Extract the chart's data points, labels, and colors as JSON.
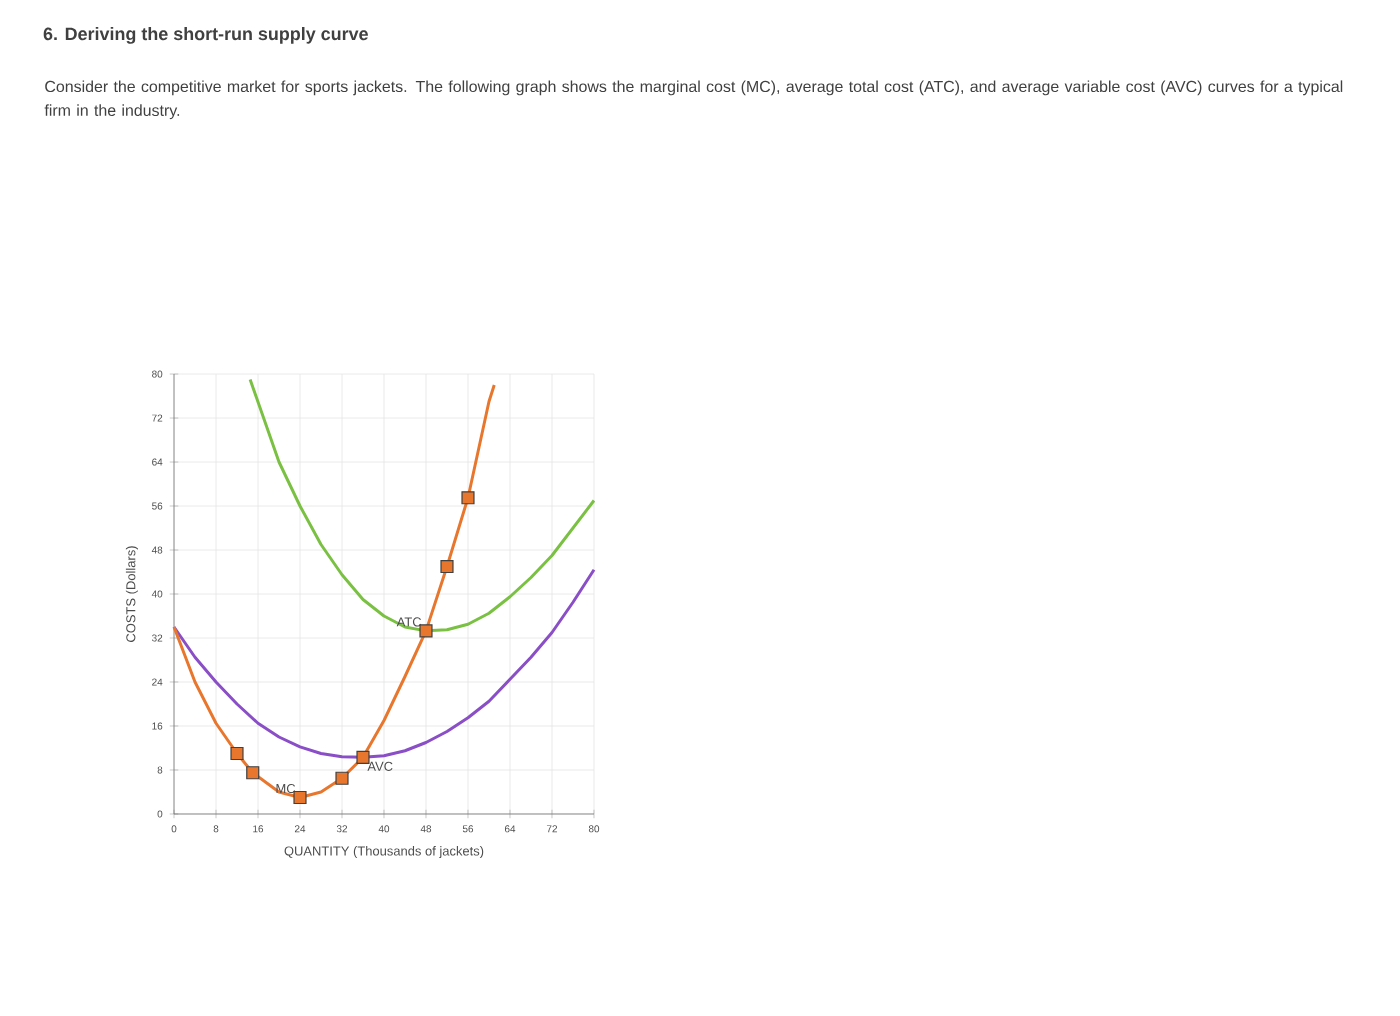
{
  "chart_data": {
    "type": "line",
    "title": "6. Deriving the short-run supply curve",
    "subtitle": "Consider the competitive market for sports jackets. The following graph shows the marginal cost (MC), average total cost (ATC), and average variable cost (AVC) curves for a typical firm in the industry.",
    "xlabel": "QUANTITY (Thousands of jackets)",
    "ylabel": "COSTS (Dollars)",
    "xlim": [
      0,
      80
    ],
    "ylim": [
      0,
      80
    ],
    "xticks": [
      0,
      8,
      16,
      24,
      32,
      40,
      48,
      56,
      64,
      72,
      80
    ],
    "yticks": [
      0,
      8,
      16,
      24,
      32,
      40,
      48,
      56,
      64,
      72,
      80
    ],
    "grid": true,
    "series": [
      {
        "name": "ATC",
        "marker": "none",
        "color": "#7ac143",
        "x": [
          14.5,
          20,
          24,
          28,
          32,
          36,
          40,
          44,
          48,
          52,
          56,
          60,
          64,
          68,
          72,
          76,
          80
        ],
        "values": [
          79,
          64,
          56,
          49,
          43.5,
          39,
          36,
          34,
          33.3,
          33.5,
          34.5,
          36.5,
          39.5,
          43,
          47,
          52,
          57
        ]
      },
      {
        "name": "AVC",
        "marker": "none",
        "color": "#8a4fc6",
        "x": [
          0,
          4,
          8,
          12,
          16,
          20,
          24,
          28,
          32,
          36,
          40,
          44,
          48,
          52,
          56,
          60,
          64,
          68,
          72,
          76,
          80
        ],
        "values": [
          34,
          28.5,
          24,
          20,
          16.5,
          14,
          12.2,
          11,
          10.4,
          10.3,
          10.6,
          11.5,
          13,
          15,
          17.5,
          20.5,
          24.5,
          28.5,
          33,
          38.5,
          44.4
        ]
      },
      {
        "name": "MC",
        "marker": "none",
        "color": "#e8762d",
        "x": [
          0,
          4,
          8,
          12,
          15,
          20,
          24,
          28,
          32,
          36,
          40,
          44,
          48,
          52,
          56,
          60,
          61
        ],
        "values": [
          34,
          24,
          16.5,
          11,
          7.5,
          4,
          3,
          4,
          6.5,
          10.3,
          17,
          25,
          33.3,
          45,
          57.5,
          75,
          78
        ]
      },
      {
        "type": "scatter",
        "marker": "square",
        "color": "#e8762d",
        "x": [
          12,
          15,
          24,
          32,
          36,
          48,
          52,
          56
        ],
        "values": [
          11,
          7.5,
          3,
          6.5,
          10.3,
          33.3,
          45,
          57.5
        ]
      }
    ]
  }
}
